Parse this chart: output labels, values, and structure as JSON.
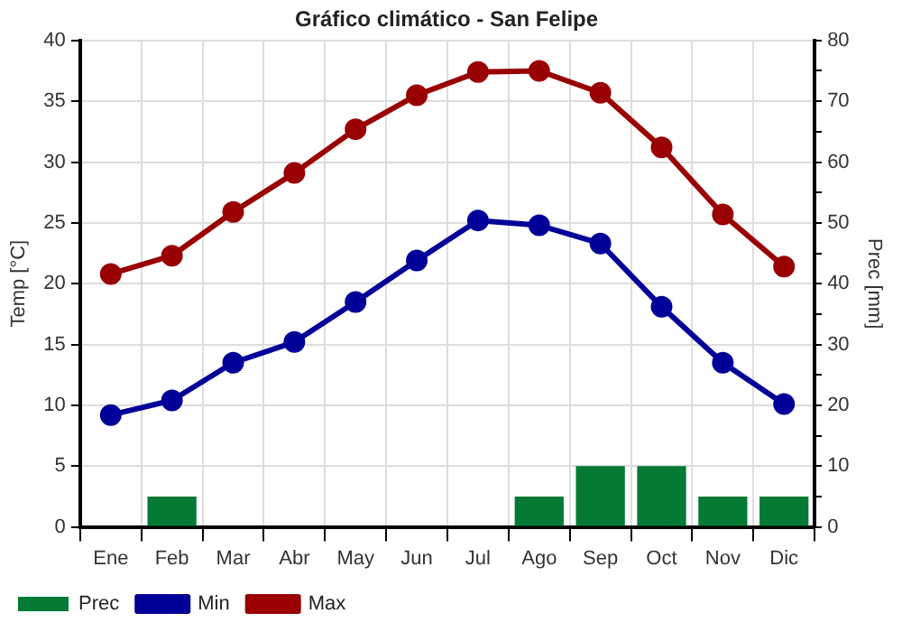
{
  "chart_data": {
    "type": "line",
    "title": "Gráfico climático - San Felipe",
    "ylabel": "Temp [°C]",
    "y2label": "Prec [mm]",
    "categories": [
      "Ene",
      "Feb",
      "Mar",
      "Abr",
      "May",
      "Jun",
      "Jul",
      "Ago",
      "Sep",
      "Oct",
      "Nov",
      "Dic"
    ],
    "series": [
      {
        "name": "Prec",
        "type": "bar",
        "axis": "y2",
        "color": "#057a35",
        "values": [
          0,
          5,
          0,
          0,
          0,
          0,
          0,
          5,
          10,
          10,
          5,
          5
        ]
      },
      {
        "name": "Min",
        "axis": "y",
        "color": "#000099",
        "values": [
          9.2,
          10.4,
          13.5,
          15.2,
          18.5,
          21.9,
          25.2,
          24.8,
          23.3,
          18.1,
          13.5,
          10.1
        ]
      },
      {
        "name": "Max",
        "axis": "y",
        "color": "#990000",
        "values": [
          20.8,
          22.3,
          25.9,
          29.1,
          32.7,
          35.5,
          37.4,
          37.5,
          35.7,
          31.2,
          25.7,
          21.4
        ]
      }
    ],
    "ylim": [
      0,
      40
    ],
    "yticks": [
      0,
      5,
      10,
      15,
      20,
      25,
      30,
      35,
      40
    ],
    "y2lim": [
      0,
      80
    ],
    "y2ticks": [
      0,
      {
        "value": 5,
        "label": null
      },
      10,
      {
        "value": 15,
        "label": null
      },
      20,
      {
        "value": 25,
        "label": null
      },
      30,
      {
        "value": 35,
        "label": null
      },
      40,
      {
        "value": 45,
        "label": null
      },
      50,
      {
        "value": 55,
        "label": null
      },
      60,
      {
        "value": 65,
        "label": null
      },
      70,
      {
        "value": 75,
        "label": null
      },
      80
    ],
    "grid": true,
    "legend": "bottom left",
    "marker": "circle",
    "line_style": "solid"
  }
}
